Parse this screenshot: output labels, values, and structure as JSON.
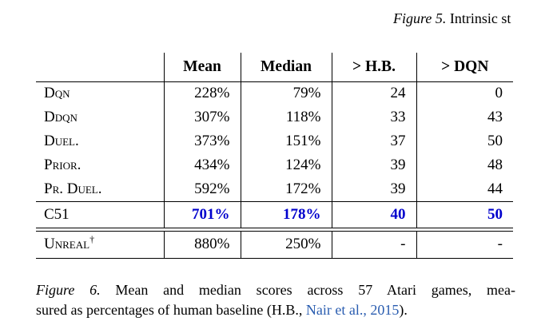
{
  "top_fragment": {
    "label": "Figure 5.",
    "text": "Intrinsic st"
  },
  "table": {
    "col_headers": [
      "Mean",
      "Median",
      "> H.B.",
      "> DQN"
    ],
    "rows": [
      {
        "label": "Dqn",
        "mean": "228%",
        "median": "79%",
        "gt_hb": "24",
        "gt_dqn": "0"
      },
      {
        "label": "Ddqn",
        "mean": "307%",
        "median": "118%",
        "gt_hb": "33",
        "gt_dqn": "43"
      },
      {
        "label": "Duel.",
        "mean": "373%",
        "median": "151%",
        "gt_hb": "37",
        "gt_dqn": "50"
      },
      {
        "label": "Prior.",
        "mean": "434%",
        "median": "124%",
        "gt_hb": "39",
        "gt_dqn": "48"
      },
      {
        "label": "Pr. Duel.",
        "mean": "592%",
        "median": "172%",
        "gt_hb": "39",
        "gt_dqn": "44"
      }
    ],
    "highlight_row": {
      "label": "C51",
      "mean": "701%",
      "median": "178%",
      "gt_hb": "40",
      "gt_dqn": "50"
    },
    "footnote_row": {
      "label": "Unreal",
      "dagger": "†",
      "mean": "880%",
      "median": "250%",
      "gt_hb": "-",
      "gt_dqn": "-"
    },
    "highlight_color": "#0000cd"
  },
  "caption": {
    "label": "Figure 6.",
    "line1": "Mean and median scores across 57 Atari games, mea-",
    "line2_prefix": "sured as percentages of human baseline (H.B., ",
    "citation": "Nair et al., 2015",
    "line2_suffix": ").",
    "citation_color": "#2a5db0"
  }
}
